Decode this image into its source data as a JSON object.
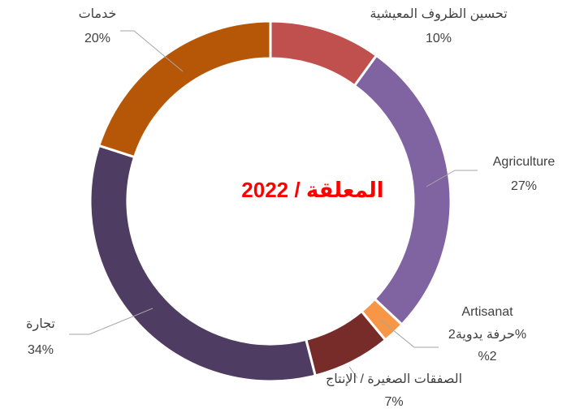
{
  "chart_data": {
    "type": "donut",
    "title": "2022 / المعلقة",
    "categories": [
      "تحسين الظروف المعيشية",
      "Agriculture",
      "Artisanat",
      "الصفقات الصغيرة / الإنتاج",
      "تجارة",
      "خدمات"
    ],
    "values": [
      10,
      27,
      2,
      7,
      34,
      20
    ],
    "value_labels": [
      "10%",
      "27%",
      "%2",
      "7%",
      "34%",
      "20%"
    ],
    "colors": [
      "#c0504d",
      "#8064a2",
      "#f79646",
      "#772c2a",
      "#4f3c62",
      "#b65708"
    ],
    "annotations": [
      "حرفة يدوية2%"
    ]
  }
}
